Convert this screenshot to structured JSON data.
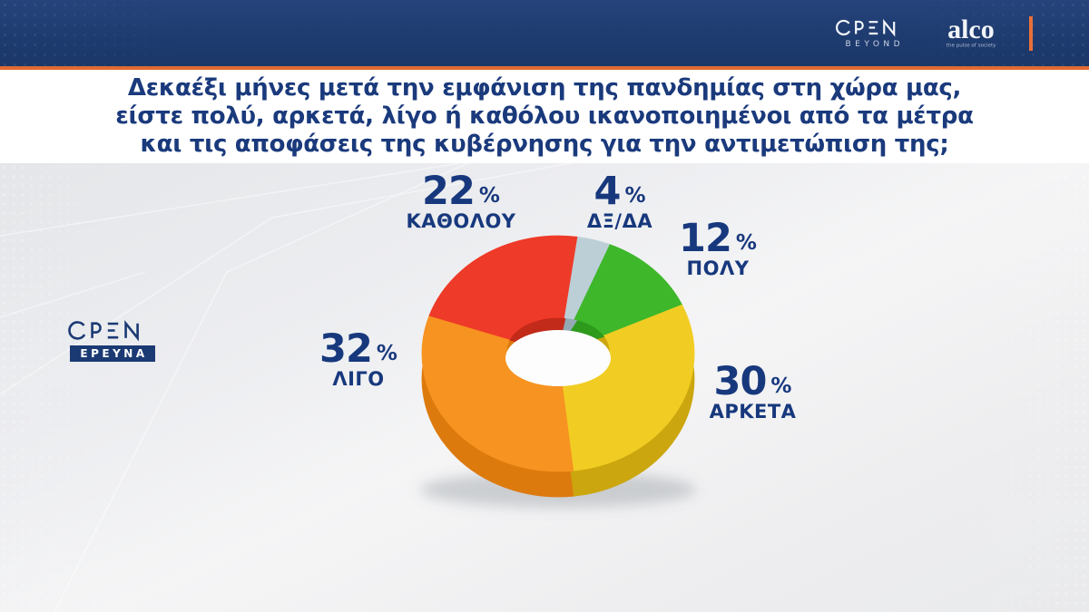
{
  "top_bar": {
    "open_logo": "OPEN",
    "open_sub": "BEYOND",
    "alco_logo": "alco",
    "alco_tagline": "the pulse of society",
    "bar_color": "#1e3b6f",
    "accent_color": "#e8703a"
  },
  "side_logo": {
    "open_logo": "OPEN",
    "badge": "ΕΡΕΥΝΑ",
    "badge_color": "#1b3a74"
  },
  "header": {
    "question_lines": [
      "Δεκαέξι μήνες μετά την εμφάνιση της πανδημίας στη χώρα μας,",
      "είστε πολύ, αρκετά, λίγο ή καθόλου ικανοποιημένοι από τα μέτρα",
      "και τις αποφάσεις της κυβέρνησης για την αντιμετώπιση της;"
    ],
    "text_color": "#1a3a7c"
  },
  "chart_data": {
    "type": "pie",
    "variant": "3d-donut",
    "title": "Δεκαέξι μήνες μετά την εμφάνιση της πανδημίας στη χώρα μας, είστε πολύ, αρκετά, λίγο ή καθόλου ικανοποιημένοι από τα μέτρα και τις αποφάσεις της κυβέρνησης για την αντιμετώπιση της;",
    "unit": "%",
    "start_angle_deg": 8,
    "legend_position": "around",
    "segments": [
      {
        "label": "ΔΞ/ΔΑ",
        "value": 4,
        "color": "#bccfd6",
        "dark": "#93aab3"
      },
      {
        "label": "ΠΟΛΥ",
        "value": 12,
        "color": "#3eb72b",
        "dark": "#2d9a1c"
      },
      {
        "label": "ΑΡΚΕΤΑ",
        "value": 30,
        "color": "#f1cd24",
        "dark": "#cba60e"
      },
      {
        "label": "ΛΙΓΟ",
        "value": 32,
        "color": "#f79320",
        "dark": "#dd7a0e"
      },
      {
        "label": "ΚΑΘΟΛΟΥ",
        "value": 22,
        "color": "#ee3a28",
        "dark": "#c22a19"
      }
    ]
  }
}
